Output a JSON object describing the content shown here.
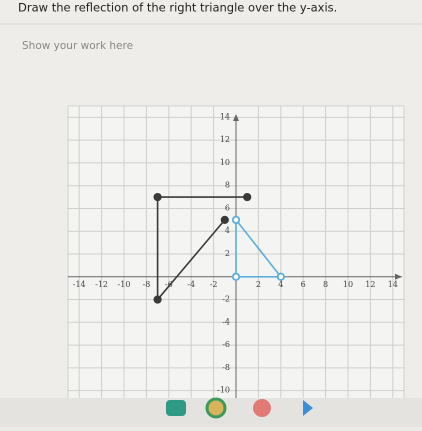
{
  "question": "Draw the reflection of the right triangle over the y-axis.",
  "placeholder": "Show your work here",
  "graph": {
    "xlim": [
      -15,
      15
    ],
    "ylim": [
      -11,
      15
    ],
    "xticks": [
      -14,
      -12,
      -10,
      -8,
      -6,
      -4,
      -2,
      2,
      4,
      6,
      8,
      10,
      12,
      14
    ],
    "yticks": [
      14,
      12,
      10,
      8,
      6,
      4,
      2,
      -2,
      -4,
      -6,
      -8,
      -10
    ],
    "triangle": {
      "color": "#5aaedc",
      "points": [
        {
          "x": 0,
          "y": 5
        },
        {
          "x": 4,
          "y": 0
        },
        {
          "x": 0,
          "y": 0
        }
      ]
    },
    "drawing": {
      "color": "#3a3a3a",
      "points": [
        {
          "x": 1,
          "y": 7
        },
        {
          "x": -7,
          "y": 7
        },
        {
          "x": -7,
          "y": -2
        },
        {
          "x": -1,
          "y": 5
        }
      ]
    }
  }
}
